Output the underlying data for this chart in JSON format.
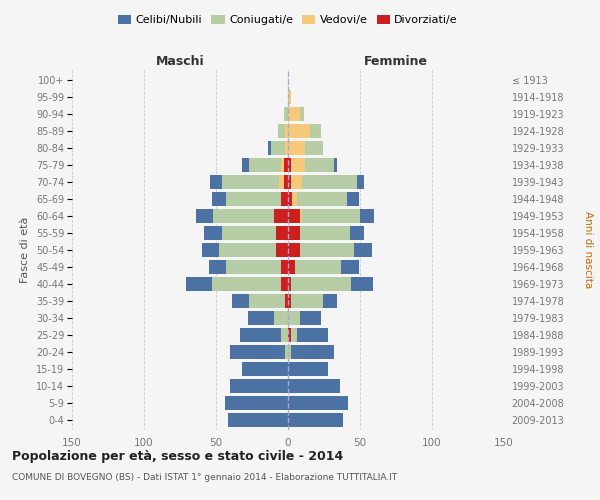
{
  "age_groups": [
    "0-4",
    "5-9",
    "10-14",
    "15-19",
    "20-24",
    "25-29",
    "30-34",
    "35-39",
    "40-44",
    "45-49",
    "50-54",
    "55-59",
    "60-64",
    "65-69",
    "70-74",
    "75-79",
    "80-84",
    "85-89",
    "90-94",
    "95-99",
    "100+"
  ],
  "birth_years": [
    "2009-2013",
    "2004-2008",
    "1999-2003",
    "1994-1998",
    "1989-1993",
    "1984-1988",
    "1979-1983",
    "1974-1978",
    "1969-1973",
    "1964-1968",
    "1959-1963",
    "1954-1958",
    "1949-1953",
    "1944-1948",
    "1939-1943",
    "1934-1938",
    "1929-1933",
    "1924-1928",
    "1919-1923",
    "1914-1918",
    "≤ 1913"
  ],
  "maschi": {
    "celibi": [
      42,
      44,
      40,
      32,
      38,
      28,
      18,
      12,
      18,
      12,
      12,
      12,
      12,
      10,
      8,
      5,
      2,
      0,
      0,
      0,
      0
    ],
    "coniugati": [
      0,
      0,
      0,
      0,
      2,
      5,
      10,
      25,
      48,
      38,
      40,
      38,
      42,
      38,
      40,
      22,
      10,
      5,
      3,
      0,
      0
    ],
    "vedovi": [
      0,
      0,
      0,
      0,
      0,
      0,
      0,
      0,
      0,
      0,
      0,
      0,
      0,
      0,
      3,
      2,
      2,
      2,
      0,
      0,
      0
    ],
    "divorziati": [
      0,
      0,
      0,
      0,
      0,
      0,
      0,
      2,
      5,
      5,
      8,
      8,
      10,
      5,
      3,
      3,
      0,
      0,
      0,
      0,
      0
    ]
  },
  "femmine": {
    "nubili": [
      38,
      42,
      36,
      28,
      30,
      22,
      15,
      10,
      15,
      12,
      12,
      10,
      10,
      8,
      5,
      2,
      0,
      0,
      0,
      0,
      0
    ],
    "coniugate": [
      0,
      0,
      0,
      0,
      2,
      4,
      8,
      22,
      42,
      32,
      38,
      35,
      40,
      35,
      38,
      20,
      12,
      8,
      3,
      0,
      0
    ],
    "vedove": [
      0,
      0,
      0,
      0,
      0,
      0,
      0,
      0,
      0,
      0,
      0,
      0,
      2,
      3,
      8,
      10,
      12,
      15,
      8,
      2,
      0
    ],
    "divorziate": [
      0,
      0,
      0,
      0,
      0,
      2,
      0,
      2,
      2,
      5,
      8,
      8,
      8,
      3,
      2,
      2,
      0,
      0,
      0,
      0,
      0
    ]
  },
  "colors": {
    "celibi": "#4c72a4",
    "coniugati": "#b5cca4",
    "vedovi": "#f5c87a",
    "divorziati": "#cc1f1f"
  },
  "xlim": 150,
  "title": "Popolazione per età, sesso e stato civile - 2014",
  "subtitle": "COMUNE DI BOVEGNO (BS) - Dati ISTAT 1° gennaio 2014 - Elaborazione TUTTITALIA.IT",
  "xlabel_left": "Maschi",
  "xlabel_right": "Femmine",
  "ylabel": "Fasce di età",
  "ylabel_right": "Anni di nascita",
  "legend_labels": [
    "Celibi/Nubili",
    "Coniugati/e",
    "Vedovi/e",
    "Divorziati/e"
  ],
  "bg_color": "#f5f5f5",
  "grid_color": "#cccccc"
}
